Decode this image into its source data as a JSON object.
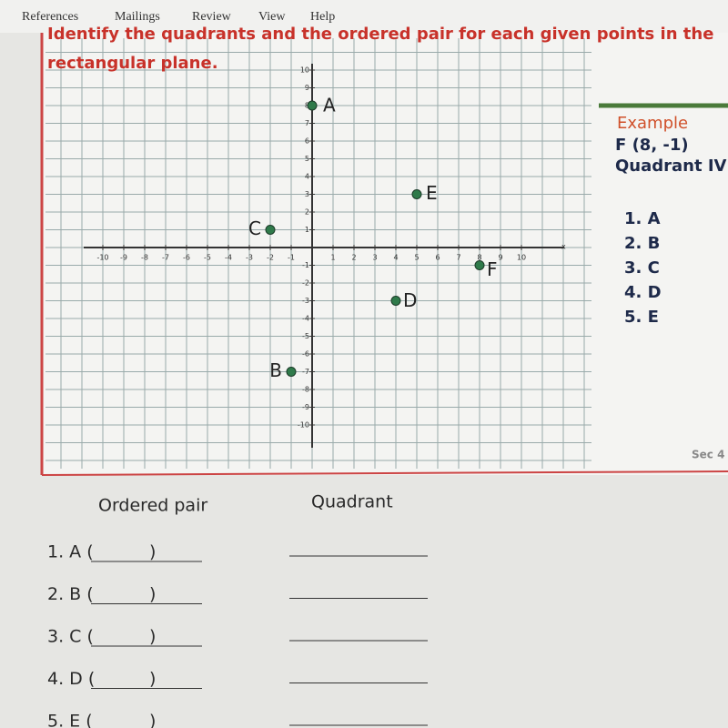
{
  "menu": [
    "References",
    "Mailings",
    "Review",
    "View",
    "Help"
  ],
  "instructions": [
    "Identify the quadrants and the ordered pair for each given points in the",
    "rectangular plane."
  ],
  "plane": {
    "xticks": [
      -10,
      -9,
      -8,
      -7,
      -6,
      -5,
      -4,
      -3,
      -2,
      -1,
      1,
      2,
      3,
      4,
      5,
      6,
      7,
      8,
      9,
      10
    ],
    "yticks": [
      -10,
      -9,
      -8,
      -7,
      -6,
      -5,
      -4,
      -3,
      -2,
      -1,
      1,
      2,
      3,
      4,
      5,
      6,
      7,
      8,
      9,
      10
    ],
    "x_axis_label": "x",
    "points": [
      {
        "label": "A",
        "x": 0,
        "y": 8
      },
      {
        "label": "B",
        "x": -1,
        "y": -7
      },
      {
        "label": "C",
        "x": -2,
        "y": 1
      },
      {
        "label": "D",
        "x": 4,
        "y": -3
      },
      {
        "label": "E",
        "x": 5,
        "y": 3
      },
      {
        "label": "F",
        "x": 8,
        "y": -1
      }
    ]
  },
  "example": {
    "title": "Example",
    "pair": "F (8, -1)",
    "quadrant": "Quadrant IV"
  },
  "list": [
    "1. A",
    "2. B",
    "3. C",
    "4. D",
    "5. E"
  ],
  "section": "Sec 4",
  "answers": {
    "headers": [
      "Ordered pair",
      "Quadrant"
    ],
    "items": [
      {
        "label": "1. A (",
        "close": ")"
      },
      {
        "label": "2. B (",
        "close": ")"
      },
      {
        "label": "3. C (",
        "close": ")"
      },
      {
        "label": "4. D (",
        "close": ")"
      },
      {
        "label": "5. E (",
        "close": ")"
      }
    ]
  }
}
